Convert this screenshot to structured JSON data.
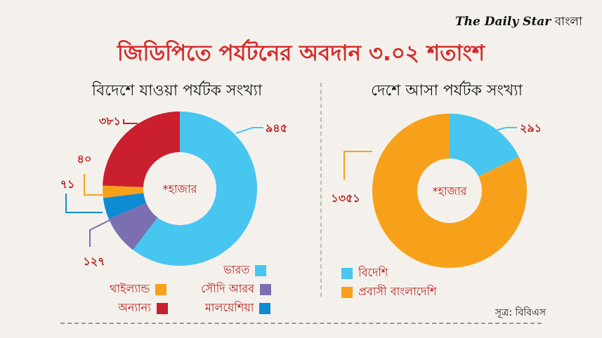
{
  "brand": {
    "logo": "The Daily Star",
    "suffix": "বাংলা"
  },
  "title": "জিডিপিতে পর্যটনের অবদান ৩.০২ শতাংশ",
  "source": "সূত্র: বিবিএস",
  "chart_data": [
    {
      "type": "pie",
      "subtitle": "বিদেশে যাওয়া পর্যটক সংখ্যা",
      "center_label": "*হাজার",
      "slices": [
        {
          "name": "ভারত",
          "value": 945,
          "label": "৯৪৫",
          "color": "#47c6ef"
        },
        {
          "name": "সৌদি আরব",
          "value": 127,
          "label": "১২৭",
          "color": "#7b6fb2"
        },
        {
          "name": "মালয়েশিয়া",
          "value": 71,
          "label": "৭১",
          "color": "#0e8bd3"
        },
        {
          "name": "থাইল্যান্ড",
          "value": 40,
          "label": "৪০",
          "color": "#f7a11a"
        },
        {
          "name": "অন্যান্য",
          "value": 381,
          "label": "৩৮১",
          "color": "#c91f2e"
        }
      ]
    },
    {
      "type": "pie",
      "subtitle": "দেশে আসা পর্যটক সংখ্যা",
      "center_label": "*হাজার",
      "slices": [
        {
          "name": "বিদেশি",
          "value": 291,
          "label": "২৯১",
          "color": "#47c6ef"
        },
        {
          "name": "প্রবাসী বাংলাদেশি",
          "value": 1351,
          "label": "১৩৫১",
          "color": "#f7a11a"
        }
      ]
    }
  ]
}
